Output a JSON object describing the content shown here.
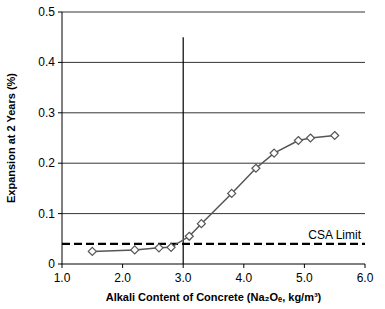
{
  "chart_data": {
    "type": "line",
    "x_label": "Alkali Content of Concrete (Na₂Oₑ, kg/m³)",
    "y_label": "Expansion at 2 Years (%)",
    "x": [
      1.5,
      2.2,
      2.6,
      2.8,
      3.1,
      3.3,
      3.8,
      4.2,
      4.5,
      4.9,
      5.1,
      5.5
    ],
    "values": [
      0.025,
      0.028,
      0.032,
      0.033,
      0.055,
      0.08,
      0.14,
      0.19,
      0.22,
      0.245,
      0.25,
      0.255
    ],
    "color": "#555555",
    "marker": "diamond",
    "line_style": "solid",
    "xlim": [
      1,
      6
    ],
    "xticks": [
      {
        "value": 1,
        "label": "1.0"
      },
      {
        "value": 2,
        "label": "2.0"
      },
      {
        "value": 3,
        "label": "3.0"
      },
      {
        "value": 4,
        "label": "4.0"
      },
      {
        "value": 5,
        "label": "5.0"
      },
      {
        "value": 6,
        "label": "6.0"
      }
    ],
    "ylim": [
      0,
      0.5
    ],
    "yticks": [
      0,
      0.1,
      0.2,
      0.3,
      0.4,
      0.5
    ],
    "grid": true,
    "annotations": [
      {
        "type": "hline",
        "y": 0.04,
        "text": "CSA Limit",
        "line_style": "dashed"
      },
      {
        "type": "vline",
        "x": 3,
        "y_end": 0.45,
        "line_style": "solid"
      }
    ]
  }
}
